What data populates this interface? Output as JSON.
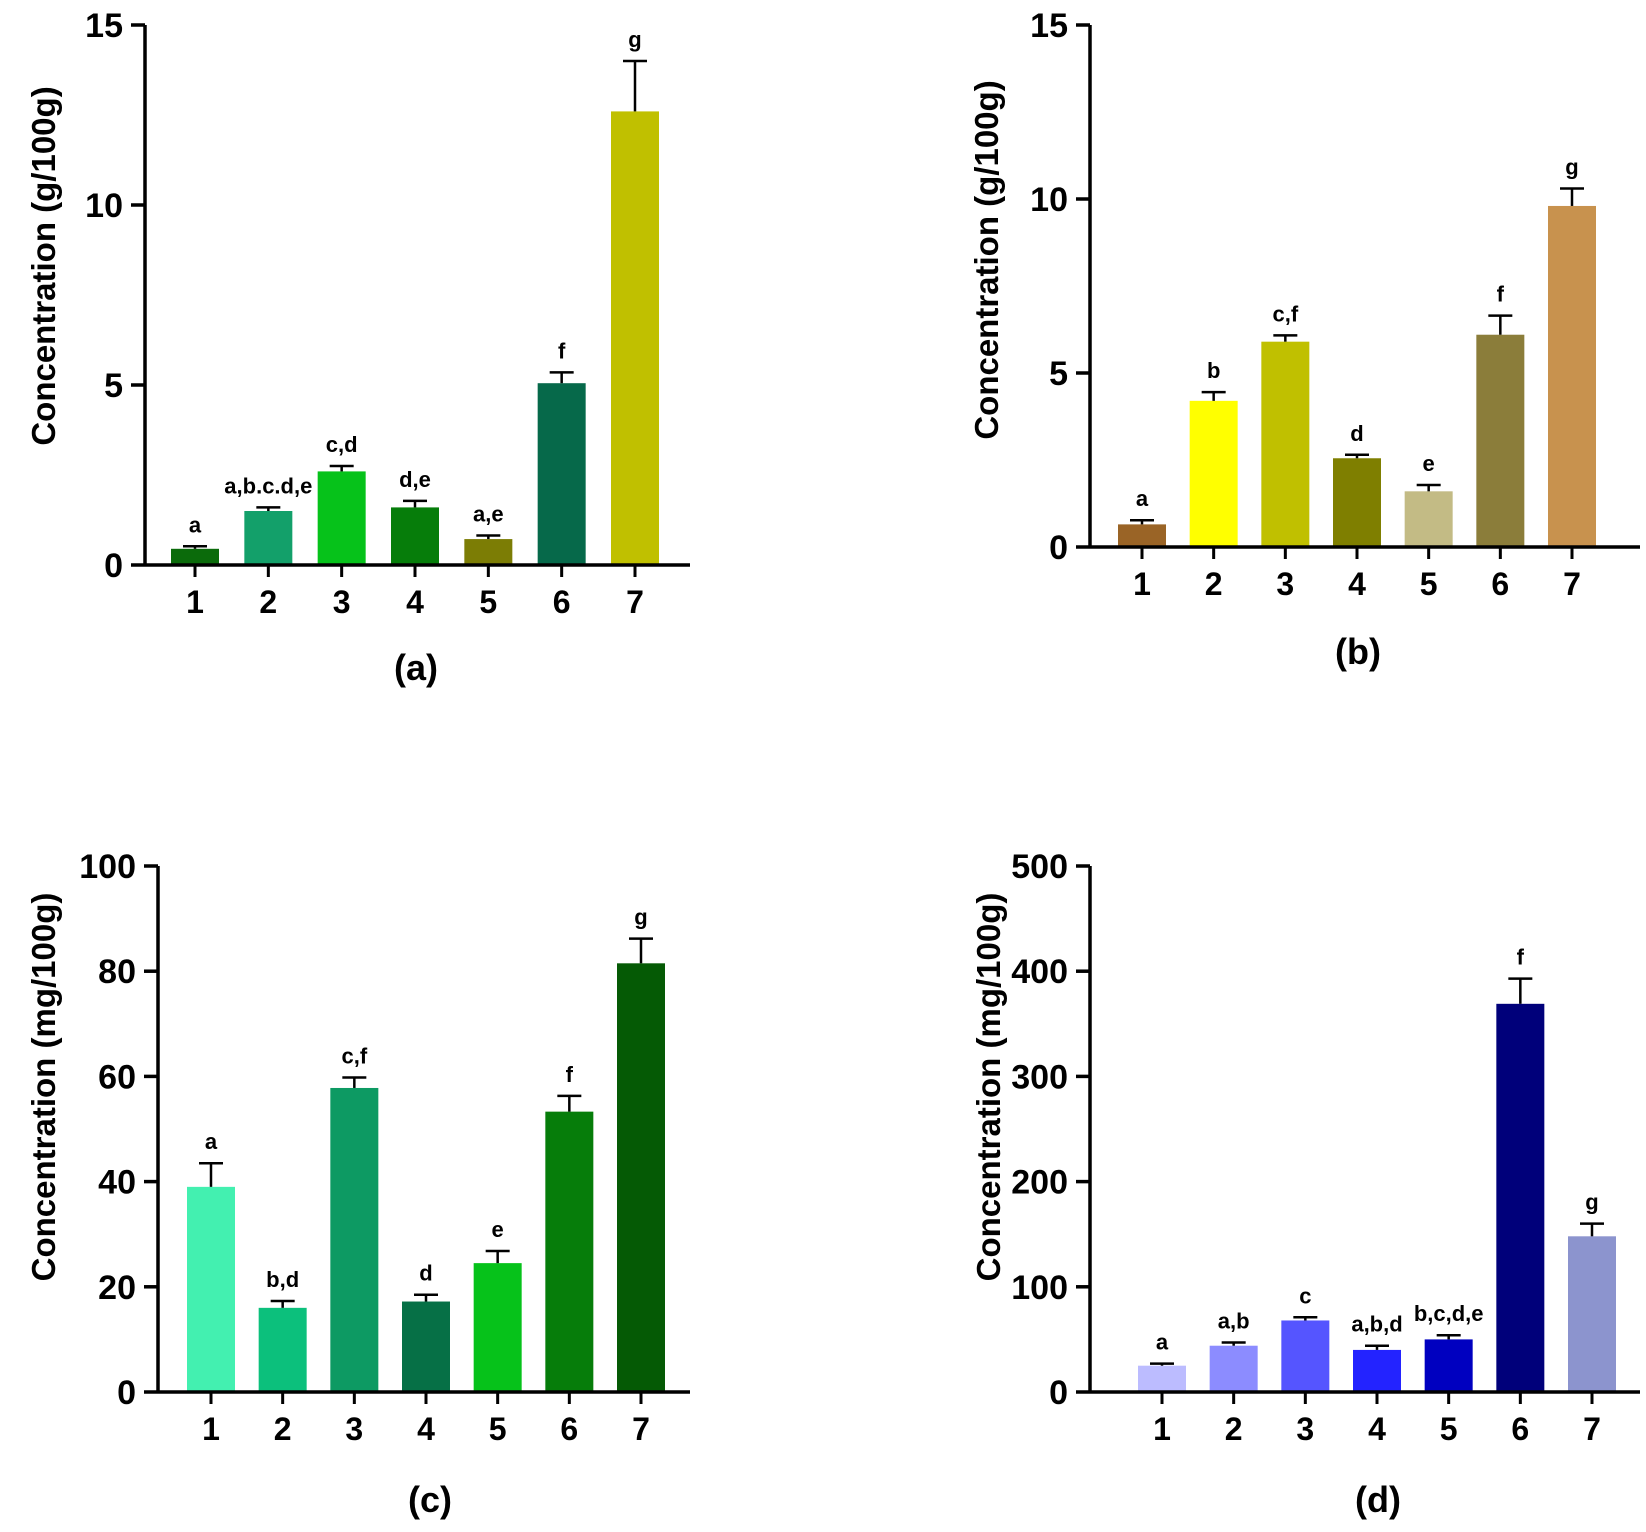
{
  "chart_data": [
    {
      "type": "bar",
      "panel": "(a)",
      "categories": [
        "1",
        "2",
        "3",
        "4",
        "5",
        "6",
        "7"
      ],
      "values": [
        0.45,
        1.5,
        2.6,
        1.6,
        0.72,
        5.05,
        12.6
      ],
      "errors": [
        0.07,
        0.1,
        0.15,
        0.18,
        0.1,
        0.3,
        1.4
      ],
      "significance": [
        "a",
        "a,b.c.d,e",
        "c,d",
        "d,e",
        "a,e",
        "f",
        "g"
      ],
      "colors": [
        "#0b6b0b",
        "#13a06a",
        "#06c21a",
        "#067d0a",
        "#7c7d05",
        "#06694a",
        "#c0c000"
      ],
      "xlabel": "",
      "ylabel": "Concentration (g/100g)",
      "ylim": [
        0,
        15
      ],
      "yticks": [
        0,
        5,
        10,
        15
      ]
    },
    {
      "type": "bar",
      "panel": "(b)",
      "categories": [
        "1",
        "2",
        "3",
        "4",
        "5",
        "6",
        "7"
      ],
      "values": [
        0.65,
        4.2,
        5.9,
        2.55,
        1.6,
        6.1,
        9.8
      ],
      "errors": [
        0.12,
        0.25,
        0.18,
        0.1,
        0.18,
        0.55,
        0.5
      ],
      "significance": [
        "a",
        "b",
        "c,f",
        "d",
        "e",
        "f",
        "g"
      ],
      "colors": [
        "#9a6426",
        "#ffff00",
        "#c0c000",
        "#7f7f00",
        "#c3bb85",
        "#8b7d3a",
        "#c8924e"
      ],
      "xlabel": "",
      "ylabel": "Concentration (g/100g)",
      "ylim": [
        0,
        15
      ],
      "yticks": [
        0,
        5,
        10,
        15
      ]
    },
    {
      "type": "bar",
      "panel": "(c)",
      "categories": [
        "1",
        "2",
        "3",
        "4",
        "5",
        "6",
        "7"
      ],
      "values": [
        39,
        16,
        57.8,
        17.2,
        24.5,
        53.3,
        81.5
      ],
      "errors": [
        4.5,
        1.3,
        2,
        1.3,
        2.3,
        3,
        4.7
      ],
      "significance": [
        "a",
        "b,d",
        "c,f",
        "d",
        "e",
        "f",
        "g"
      ],
      "colors": [
        "#43f0b0",
        "#0cc07c",
        "#0d9a63",
        "#067046",
        "#06c21a",
        "#067d0a",
        "#055a05"
      ],
      "xlabel": "",
      "ylabel": "Concentration (mg/100g)",
      "ylim": [
        0,
        100
      ],
      "yticks": [
        0,
        20,
        40,
        60,
        80,
        100
      ]
    },
    {
      "type": "bar",
      "panel": "(d)",
      "categories": [
        "1",
        "2",
        "3",
        "4",
        "5",
        "6",
        "7"
      ],
      "values": [
        25,
        44,
        68,
        40,
        50,
        369,
        148
      ],
      "errors": [
        2,
        3,
        3,
        4,
        4,
        24,
        12
      ],
      "significance": [
        "a",
        "a,b",
        "c",
        "a,b,d",
        "b,c,d,e",
        "f",
        "g"
      ],
      "colors": [
        "#bcbcff",
        "#8c8cff",
        "#5555ff",
        "#2323ff",
        "#0000c0",
        "#00007a",
        "#8c94ce"
      ],
      "xlabel": "",
      "ylabel": "Concentration (mg/100g)",
      "ylim": [
        0,
        500
      ],
      "yticks": [
        0,
        100,
        200,
        300,
        400,
        500
      ]
    }
  ]
}
